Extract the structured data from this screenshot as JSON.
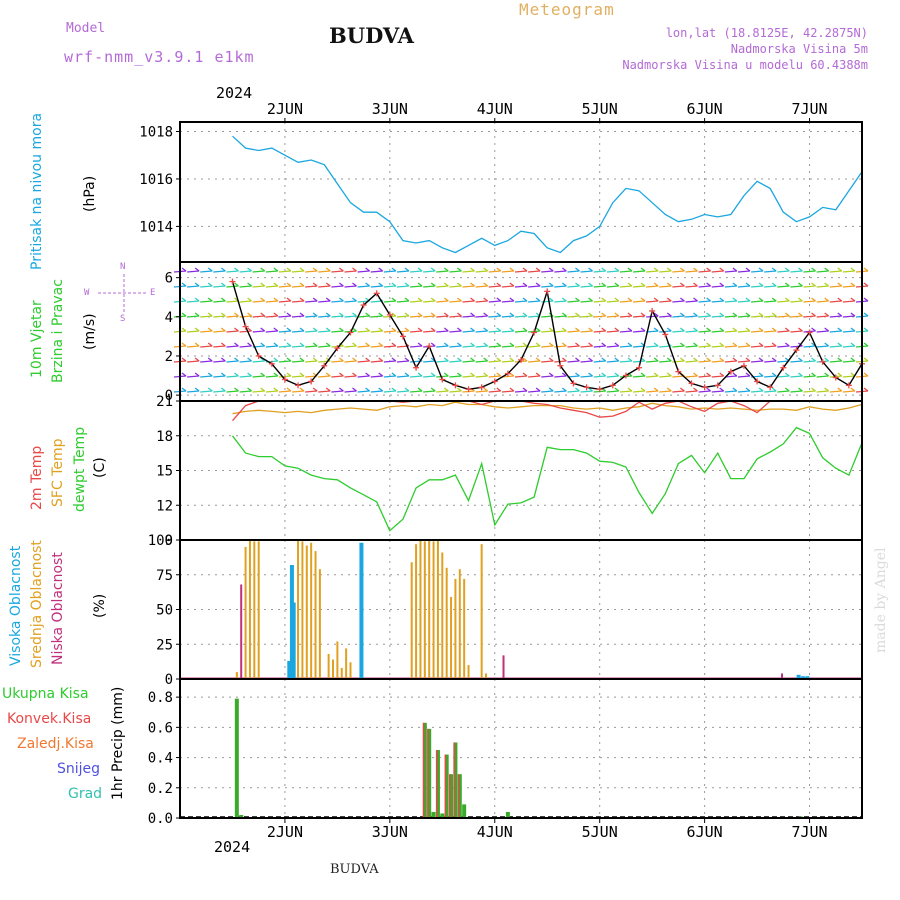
{
  "header": {
    "model_label": "Model",
    "model_name": "wrf-nmm_v3.9.1  e1km",
    "title": "BUDVA",
    "meteogram": "Meteogram",
    "lonlat": "lon,lat (18.8125E, 42.2875N)",
    "altitude": "Nadmorska Visina 5m",
    "model_altitude": "Nadmorska Visina u modelu 60.4388m",
    "watermark": "made by Angel",
    "footer": "BUDVA",
    "year_top": "2024",
    "year_bottom": "2024"
  },
  "colors": {
    "pressure": "#1aa7e0",
    "temp2m": "#e84848",
    "sfc": "#e0a020",
    "dewpt": "#2ecc2e",
    "high_cloud": "#1aa7e0",
    "mid_cloud": "#e0a020",
    "low_cloud": "#c0307c",
    "precip_total": "#3aaa2a",
    "precip_conv": "#e84848",
    "precip_freez": "#f07830",
    "snow": "#5050e0",
    "hail": "#30c0b0"
  },
  "panel_labels": {
    "p1": [
      "Pritisak na nivou mora",
      "(hPa)"
    ],
    "p2": [
      "10m Vjetar",
      "Brzina i Pravac",
      "(m/s)"
    ],
    "p3": [
      "2m Temp",
      "SFC Temp",
      "dewpt Temp",
      "(C)"
    ],
    "p4": [
      "Visoka Oblacnost",
      "Srednja Oblacnost",
      "Niska Oblacnost",
      "(%)"
    ],
    "p5_left": [
      "Ukupna Kisa",
      "Konvek.Kisa",
      "Zaledj.Kisa",
      "Snijeg",
      "Grad"
    ],
    "p5_unit": "1hr Precip (mm)",
    "compass": {
      "n": "N",
      "s": "S",
      "w": "W",
      "e": "E"
    }
  },
  "chart_data": [
    {
      "type": "line",
      "title": "Pritisak na nivou mora",
      "ylabel": "(hPa)",
      "x_tick_labels": [
        "2JUN",
        "3JUN",
        "4JUN",
        "5JUN",
        "6JUN",
        "7JUN"
      ],
      "x_hours": [
        0,
        3,
        6,
        9,
        12,
        15,
        18,
        21,
        24,
        27,
        30,
        33,
        36,
        39,
        42,
        45,
        48,
        51,
        54,
        57,
        60,
        63,
        66,
        69,
        72,
        75,
        78,
        81,
        84,
        87,
        90,
        93,
        96,
        99,
        102,
        105,
        108,
        111,
        114,
        117,
        120,
        123,
        126,
        129,
        132,
        135,
        138,
        141,
        144
      ],
      "series": [
        {
          "values": [
            1017.8,
            1017.3,
            1017.2,
            1017.3,
            1017.0,
            1016.7,
            1016.8,
            1016.6,
            1015.8,
            1015.0,
            1014.6,
            1014.6,
            1014.2,
            1013.4,
            1013.3,
            1013.4,
            1013.1,
            1012.9,
            1013.2,
            1013.5,
            1013.2,
            1013.4,
            1013.8,
            1013.7,
            1013.1,
            1012.9,
            1013.4,
            1013.6,
            1014.0,
            1015.0,
            1015.6,
            1015.5,
            1015.0,
            1014.5,
            1014.2,
            1014.3,
            1014.5,
            1014.4,
            1014.5,
            1015.3,
            1015.9,
            1015.6,
            1014.6,
            1014.2,
            1014.4,
            1014.8,
            1014.7,
            1015.5,
            1016.3
          ]
        }
      ],
      "ylim": [
        1012.5,
        1018.4
      ],
      "y_ticks": [
        1014,
        1016,
        1018
      ]
    },
    {
      "type": "line",
      "title": "10m Vjetar Brzina i Pravac",
      "ylabel": "(m/s)",
      "x_hours": [
        0,
        3,
        6,
        9,
        12,
        15,
        18,
        21,
        24,
        27,
        30,
        33,
        36,
        39,
        42,
        45,
        48,
        51,
        54,
        57,
        60,
        63,
        66,
        69,
        72,
        75,
        78,
        81,
        84,
        87,
        90,
        93,
        96,
        99,
        102,
        105,
        108,
        111,
        114,
        117,
        120,
        123,
        126,
        129,
        132,
        135,
        138,
        141,
        144
      ],
      "series": [
        {
          "values": [
            5.8,
            3.5,
            2.0,
            1.6,
            0.8,
            0.5,
            0.7,
            1.5,
            2.4,
            3.2,
            4.6,
            5.2,
            4.1,
            3.0,
            1.4,
            2.5,
            0.8,
            0.5,
            0.3,
            0.4,
            0.7,
            1.1,
            1.8,
            3.2,
            5.3,
            1.5,
            0.6,
            0.4,
            0.3,
            0.5,
            1.0,
            1.4,
            4.3,
            3.1,
            1.2,
            0.6,
            0.4,
            0.5,
            1.2,
            1.5,
            0.7,
            0.4,
            1.4,
            2.3,
            3.2,
            1.7,
            0.9,
            0.5,
            1.6
          ]
        }
      ],
      "ylim": [
        -0.3,
        6.8
      ],
      "y_ticks": [
        0,
        2,
        4,
        6
      ]
    },
    {
      "type": "line",
      "title": "2m Temp / SFC Temp / dewpt Temp",
      "ylabel": "(C)",
      "x_hours": [
        0,
        3,
        6,
        9,
        12,
        15,
        18,
        21,
        24,
        27,
        30,
        33,
        36,
        39,
        42,
        45,
        48,
        51,
        54,
        57,
        60,
        63,
        66,
        69,
        72,
        75,
        78,
        81,
        84,
        87,
        90,
        93,
        96,
        99,
        102,
        105,
        108,
        111,
        114,
        117,
        120,
        123,
        126,
        129,
        132,
        135,
        138,
        141,
        144
      ],
      "series": [
        {
          "name": "2m Temp",
          "values": [
            19.3,
            20.6,
            21.2,
            21.0,
            21.4,
            21.6,
            21.4,
            21.3,
            21.2,
            21.6,
            21.2,
            21.8,
            21.2,
            20.9,
            21.3,
            21.0,
            21.2,
            21.4,
            21.0,
            20.7,
            21.5,
            21.0,
            21.7,
            20.8,
            20.7,
            20.4,
            20.2,
            20.0,
            19.6,
            19.7,
            20.1,
            20.9,
            20.3,
            20.8,
            21.0,
            20.5,
            20.1,
            20.8,
            21.6,
            20.6,
            20.0,
            21.0,
            21.8,
            21.7,
            21.7,
            21.2,
            21.5,
            21.8,
            21.3
          ]
        },
        {
          "name": "SFC Temp",
          "values": [
            19.9,
            20.1,
            20.2,
            20.1,
            20.0,
            20.1,
            20.0,
            20.2,
            20.3,
            20.4,
            20.3,
            20.2,
            20.5,
            20.6,
            20.5,
            20.7,
            20.6,
            20.9,
            20.7,
            20.7,
            20.5,
            20.4,
            20.5,
            20.6,
            20.6,
            20.6,
            20.4,
            20.3,
            20.4,
            20.2,
            20.4,
            20.5,
            20.8,
            20.6,
            20.5,
            20.3,
            20.4,
            20.3,
            20.4,
            20.3,
            20.2,
            20.3,
            20.3,
            20.2,
            20.5,
            20.3,
            20.2,
            20.4,
            20.7
          ]
        },
        {
          "name": "dewpt Temp",
          "values": [
            18.0,
            16.5,
            16.2,
            16.2,
            15.4,
            15.2,
            14.6,
            14.3,
            14.2,
            13.5,
            12.9,
            12.3,
            9.8,
            10.8,
            13.5,
            14.2,
            14.2,
            14.6,
            12.4,
            15.6,
            10.3,
            12.1,
            12.2,
            12.7,
            17.0,
            16.8,
            16.8,
            16.5,
            15.8,
            15.7,
            15.3,
            13.1,
            11.3,
            13.0,
            15.6,
            16.3,
            14.8,
            16.5,
            14.3,
            14.3,
            16.0,
            16.6,
            17.3,
            18.7,
            18.2,
            16.1,
            15.2,
            14.6,
            17.4
          ]
        }
      ],
      "ylim": [
        9,
        21
      ],
      "y_ticks": [
        9,
        12,
        15,
        18,
        21
      ]
    },
    {
      "type": "bar",
      "title": "Visoka / Srednja / Niska Oblacnost",
      "ylabel": "(%)",
      "x_hours": [
        1,
        2,
        3,
        3.6,
        4,
        5,
        6,
        13.0,
        13.6,
        14.0,
        15,
        16,
        17,
        18,
        19,
        20,
        21,
        22,
        23,
        24,
        25,
        26,
        27,
        28,
        29.5,
        41,
        42,
        43,
        44,
        45,
        46,
        47,
        48,
        49,
        50,
        51,
        52,
        53,
        54,
        55,
        56,
        57,
        58,
        59,
        62,
        62.6,
        125.7,
        129.5,
        130.5,
        131.5
      ],
      "series": [
        {
          "name": "Visoka Oblacnost",
          "values": [
            0,
            0,
            0,
            0,
            0,
            0,
            0,
            13,
            82,
            55,
            0,
            0,
            0,
            0,
            0,
            0,
            0,
            0,
            0,
            0,
            0,
            0,
            0,
            0,
            98,
            0,
            0,
            0,
            0,
            0,
            0,
            0,
            0,
            0,
            0,
            0,
            0,
            0,
            0,
            0,
            0,
            0,
            0,
            0,
            0,
            0,
            0,
            3,
            2,
            2
          ]
        },
        {
          "name": "Srednja Oblacnost",
          "values": [
            5,
            0,
            95,
            0,
            100,
            99,
            99,
            0,
            0,
            0,
            100,
            99,
            96,
            98,
            92,
            79,
            0,
            18,
            14,
            27,
            8,
            22,
            12,
            0,
            0,
            84,
            97,
            100,
            99,
            100,
            99,
            100,
            91,
            80,
            59,
            72,
            79,
            72,
            10,
            0,
            0,
            97,
            4,
            0,
            12,
            0,
            0,
            0,
            0,
            0
          ]
        },
        {
          "name": "Niska Oblacnost",
          "values": [
            0,
            68,
            0,
            0,
            0,
            0,
            0,
            0,
            0,
            0,
            0,
            0,
            0,
            0,
            0,
            0,
            0,
            0,
            0,
            0,
            0,
            0,
            0,
            0,
            0,
            0,
            0,
            0,
            0,
            0,
            0,
            0,
            0,
            0,
            0,
            0,
            0,
            0,
            0,
            0,
            0,
            0,
            0,
            0,
            17,
            0,
            4,
            0,
            0,
            0
          ]
        }
      ],
      "ylim": [
        0,
        100
      ],
      "y_ticks": [
        0,
        25,
        50,
        75,
        100
      ]
    },
    {
      "type": "bar",
      "title": "1hr Precip",
      "ylabel": "1hr Precip (mm)",
      "x_tick_labels": [
        "2JUN",
        "3JUN",
        "4JUN",
        "5JUN",
        "6JUN",
        "7JUN"
      ],
      "x_hours": [
        1,
        2,
        44,
        45,
        46,
        47,
        48,
        49,
        50,
        51,
        52,
        53,
        54,
        63,
        130
      ],
      "series": [
        {
          "name": "Ukupna Kisa",
          "values": [
            0.79,
            0.02,
            0.63,
            0.59,
            0.04,
            0.45,
            0.03,
            0.42,
            0.29,
            0.5,
            0.29,
            0.09,
            0.0,
            0.04,
            0.01
          ]
        },
        {
          "name": "Konvek.Kisa",
          "values": [
            0,
            0,
            0.01,
            0.01,
            0.0,
            0.01,
            0.0,
            0.01,
            0.01,
            0.01,
            0.01,
            0.0,
            0.0,
            0.0,
            0.0
          ]
        }
      ],
      "ylim": [
        0,
        0.92
      ],
      "y_ticks": [
        0,
        0.2,
        0.4,
        0.6,
        0.8
      ]
    }
  ]
}
